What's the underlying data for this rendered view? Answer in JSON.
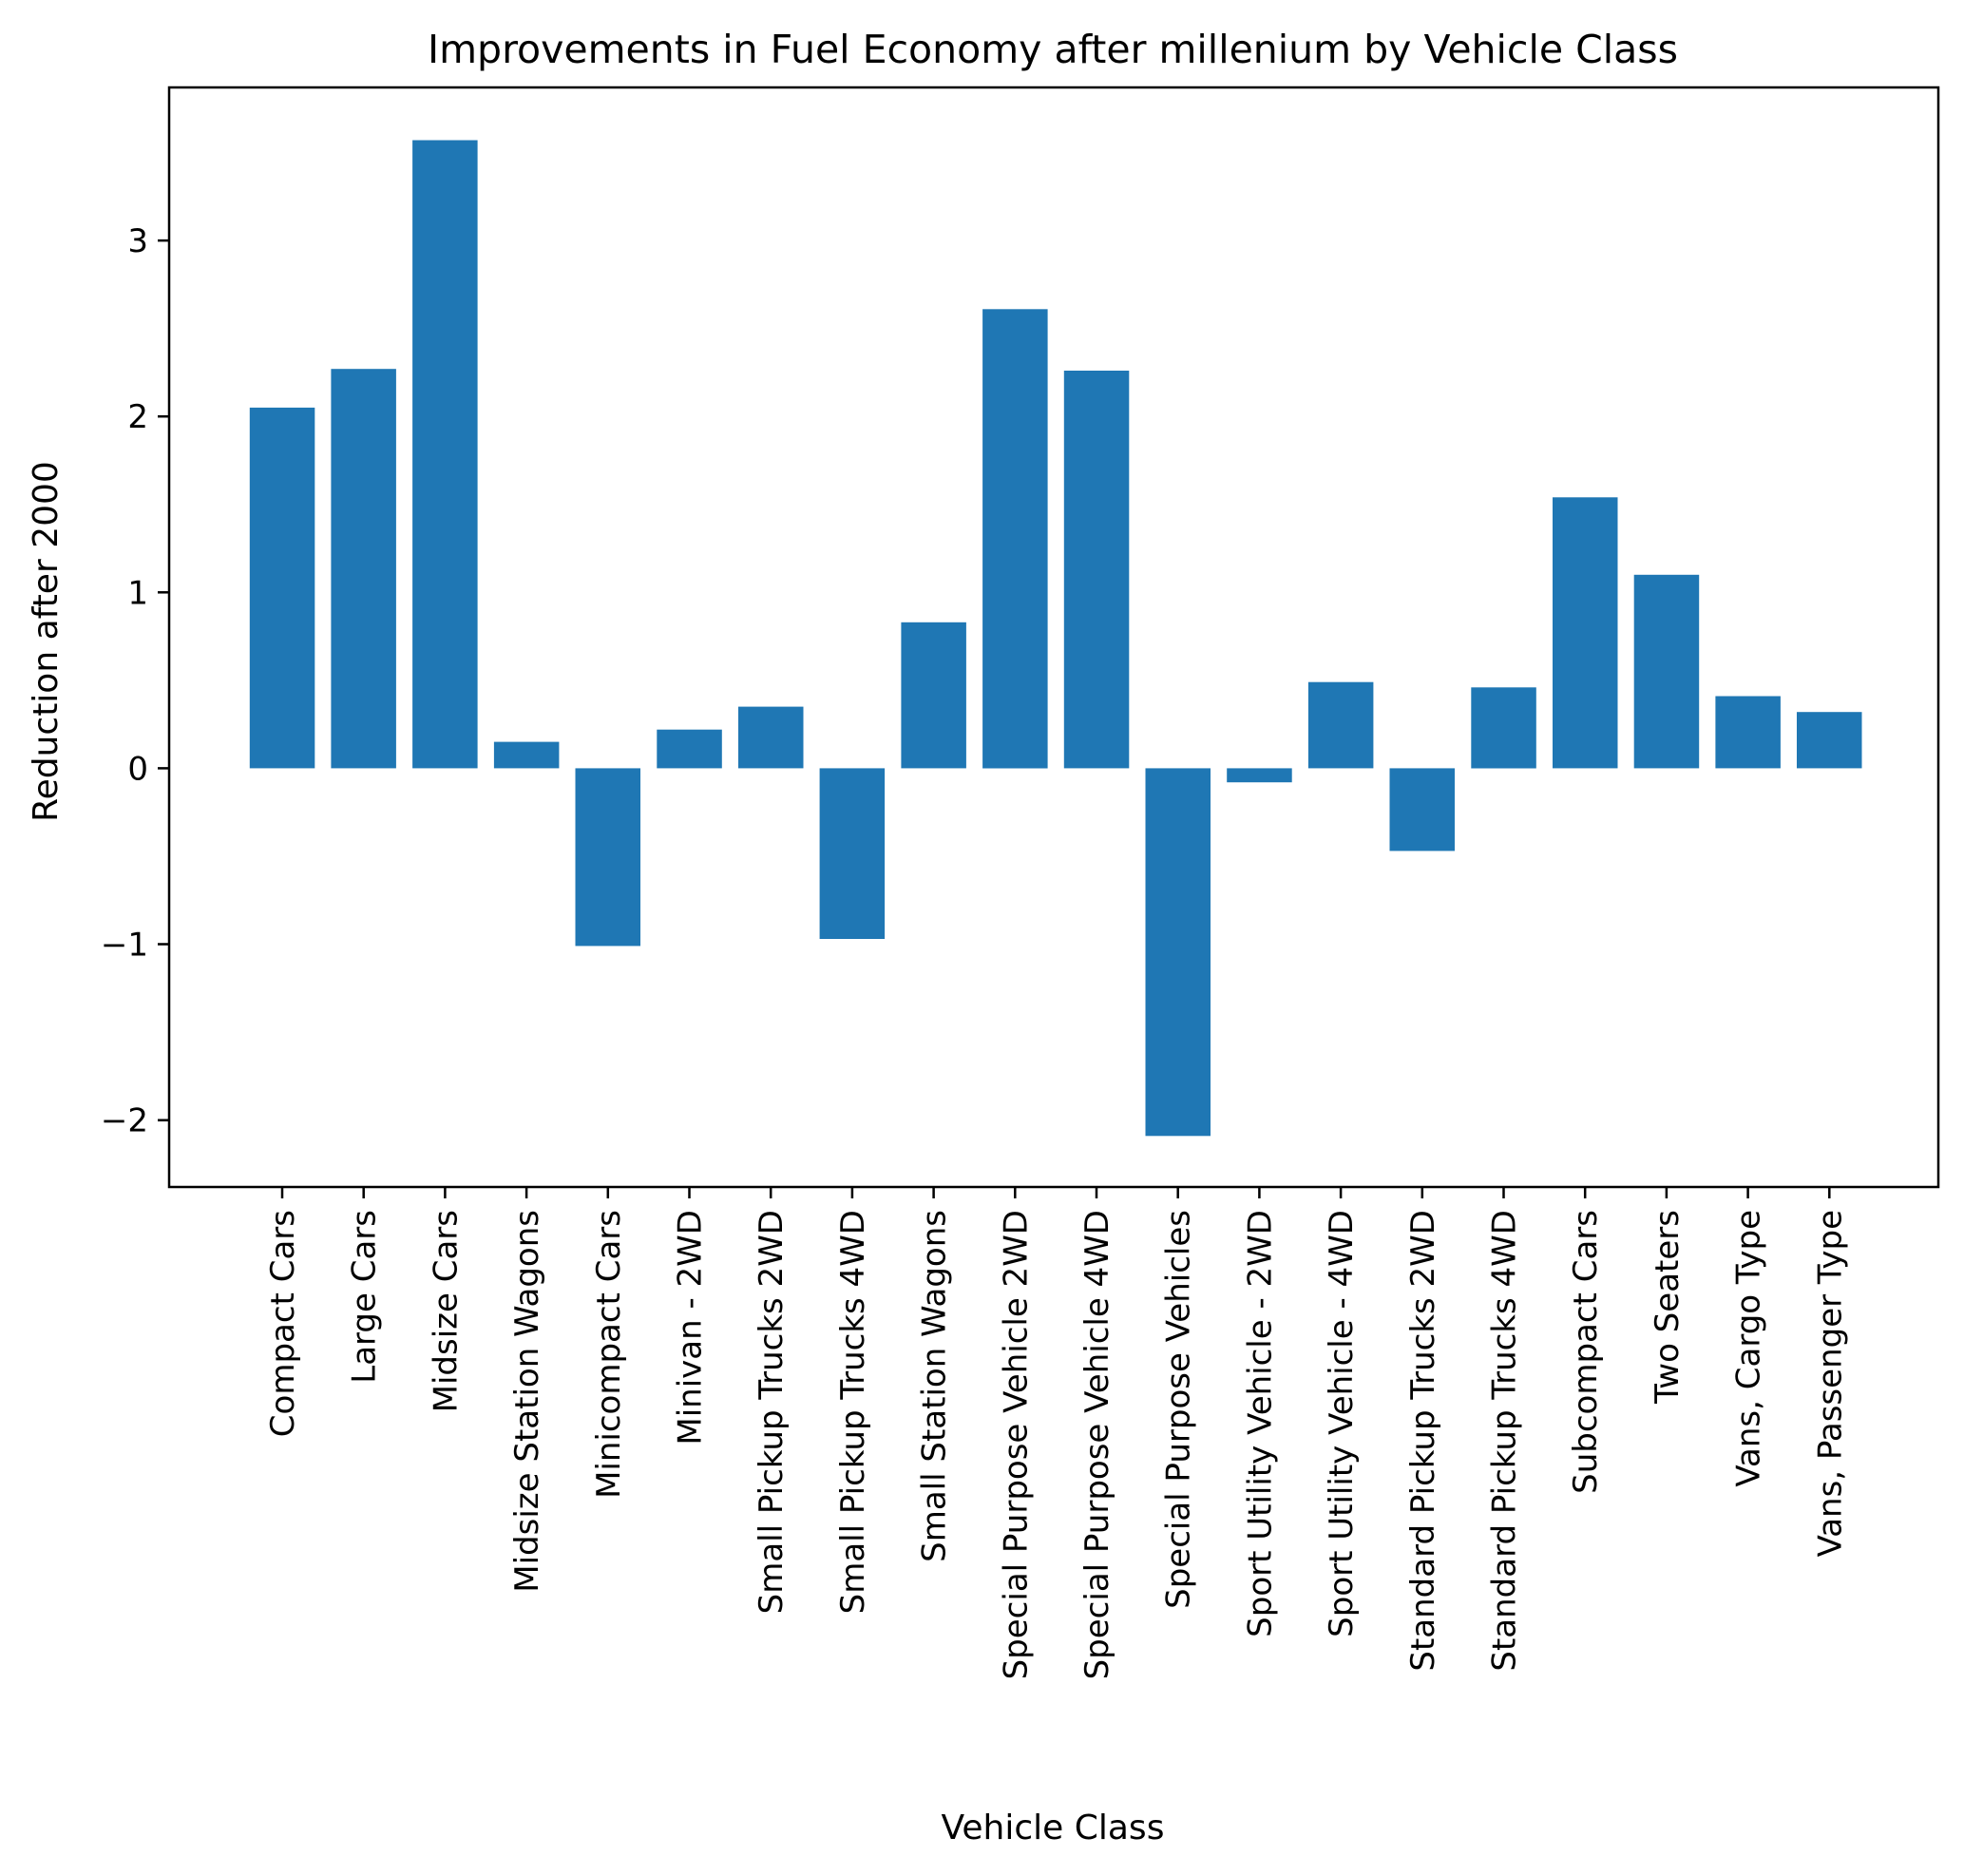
{
  "chart_data": {
    "type": "bar",
    "title": "Improvements in Fuel Economy after millenium by Vehicle Class",
    "xlabel": "Vehicle Class",
    "ylabel": "Reduction after 2000",
    "ylim": [
      -2.38,
      3.87
    ],
    "yticks": [
      -2,
      -1,
      0,
      1,
      2,
      3
    ],
    "ytick_labels": [
      "−2",
      "−1",
      "0",
      "1",
      "2",
      "3"
    ],
    "grid": false,
    "legend": "none",
    "bar_color": "#1f77b4",
    "categories": [
      "Compact Cars",
      "Large Cars",
      "Midsize Cars",
      "Midsize Station Wagons",
      "Minicompact Cars",
      "Minivan - 2WD",
      "Small Pickup Trucks 2WD",
      "Small Pickup Trucks 4WD",
      "Small Station Wagons",
      "Special Purpose Vehicle 2WD",
      "Special Purpose Vehicle 4WD",
      "Special Purpose Vehicles",
      "Sport Utility Vehicle - 2WD",
      "Sport Utility Vehicle - 4WD",
      "Standard Pickup Trucks 2WD",
      "Standard Pickup Trucks 4WD",
      "Subcompact Cars",
      "Two Seaters",
      "Vans, Cargo Type",
      "Vans, Passenger Type"
    ],
    "values": [
      2.05,
      2.27,
      3.57,
      0.15,
      -1.01,
      0.22,
      0.35,
      -0.97,
      0.83,
      2.61,
      2.26,
      -2.09,
      -0.08,
      0.49,
      -0.47,
      0.46,
      1.54,
      1.1,
      0.41,
      0.32
    ]
  }
}
